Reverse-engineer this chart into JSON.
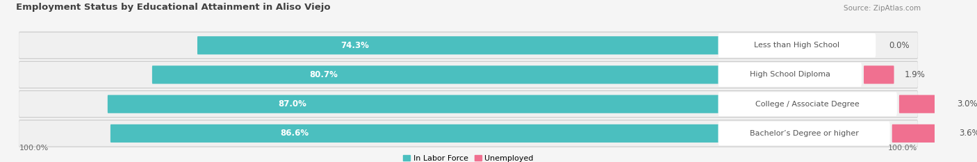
{
  "title": "Employment Status by Educational Attainment in Aliso Viejo",
  "source": "Source: ZipAtlas.com",
  "categories": [
    "Less than High School",
    "High School Diploma",
    "College / Associate Degree",
    "Bachelor’s Degree or higher"
  ],
  "in_labor_force": [
    74.3,
    80.7,
    87.0,
    86.6
  ],
  "unemployed": [
    0.0,
    1.9,
    3.0,
    3.6
  ],
  "labor_force_color": "#4bbfbf",
  "unemployed_color": "#f07090",
  "background_color": "#f5f5f5",
  "row_bg_color": "#e2e2e2",
  "row_bg_inner": "#f8f8f8",
  "axis_label_left": "100.0%",
  "axis_label_right": "100.0%",
  "title_fontsize": 9.5,
  "source_fontsize": 7.5,
  "bar_label_fontsize": 8.5,
  "category_fontsize": 8,
  "axis_fontsize": 8,
  "legend_fontsize": 8
}
